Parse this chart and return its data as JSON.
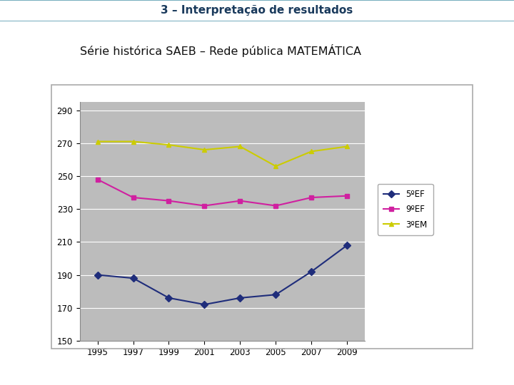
{
  "title_banner": "3 – Interpretação de resultados",
  "subtitle": "Série histórica SAEB – Rede pública MATEMÁTICA",
  "years": [
    1995,
    1997,
    1999,
    2001,
    2003,
    2005,
    2007,
    2009
  ],
  "series": {
    "5ºEF": {
      "values": [
        190,
        188,
        176,
        172,
        176,
        178,
        192,
        208
      ],
      "color": "#1f2d7b",
      "marker": "D"
    },
    "9ºEF": {
      "values": [
        248,
        237,
        235,
        232,
        235,
        232,
        237,
        238
      ],
      "color": "#d020a0",
      "marker": "s"
    },
    "3ºEM": {
      "values": [
        271,
        271,
        269,
        266,
        268,
        256,
        265,
        268
      ],
      "color": "#cccc00",
      "marker": "^"
    }
  },
  "ylim": [
    150,
    295
  ],
  "yticks": [
    150,
    170,
    190,
    210,
    230,
    250,
    270,
    290
  ],
  "plot_bg": "#bcbcbc",
  "fig_bg": "#ffffff",
  "banner_bg": "#aacfda",
  "banner_border": "#7ab0c0",
  "banner_text_color": "#1a3a5c",
  "legend_labels": [
    "5ºEF",
    "9ºEF",
    "3ºEM"
  ],
  "outer_box_color": "#cccccc"
}
